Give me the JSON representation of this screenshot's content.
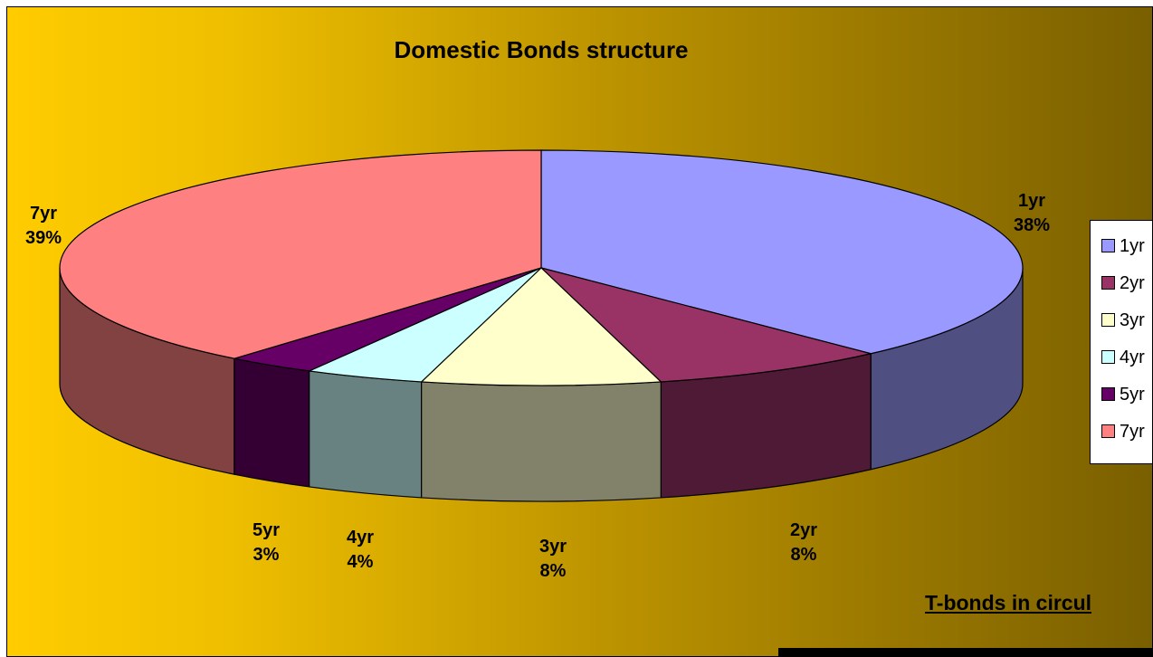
{
  "chart_data": {
    "type": "pie",
    "style": "3d",
    "title": "Domestic Bonds structure",
    "slices": [
      {
        "label": "1yr",
        "value": 38,
        "display": "38%",
        "color": "#9999ff",
        "side_color": "#4f4f82"
      },
      {
        "label": "2yr",
        "value": 8,
        "display": "8%",
        "color": "#993366",
        "side_color": "#4e1a36"
      },
      {
        "label": "3yr",
        "value": 8,
        "display": "8%",
        "color": "#ffffcc",
        "side_color": "#82826a"
      },
      {
        "label": "4yr",
        "value": 4,
        "display": "4%",
        "color": "#ccffff",
        "side_color": "#688282"
      },
      {
        "label": "5yr",
        "value": 3,
        "display": "3%",
        "color": "#660066",
        "side_color": "#340034"
      },
      {
        "label": "7yr",
        "value": 39,
        "display": "39%",
        "color": "#ff8080",
        "side_color": "#824242"
      }
    ],
    "legend": {
      "position": "right",
      "entries": [
        "1yr",
        "2yr",
        "3yr",
        "4yr",
        "5yr",
        "7yr"
      ]
    }
  },
  "footer": {
    "subheading": "T-bonds in circul"
  }
}
